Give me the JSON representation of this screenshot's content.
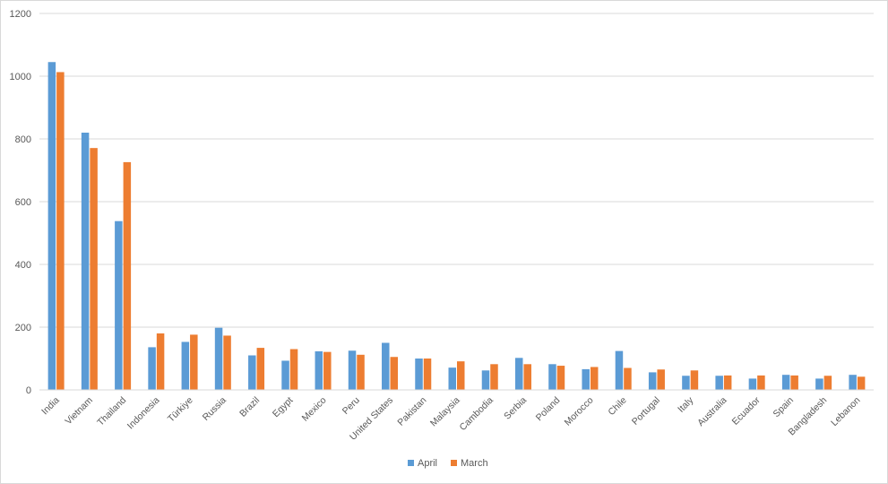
{
  "chart_data": {
    "type": "bar",
    "title": "",
    "xlabel": "",
    "ylabel": "",
    "ylim": [
      0,
      1200
    ],
    "yticks": [
      0,
      200,
      400,
      600,
      800,
      1000,
      1200
    ],
    "grid": true,
    "legend_position": "bottom",
    "categories": [
      "India",
      "Vietnam",
      "Thailand",
      "Indonesia",
      "Türkiye",
      "Russia",
      "Brazil",
      "Egypt",
      "Mexico",
      "Peru",
      "United States",
      "Pakistan",
      "Malaysia",
      "Cambodia",
      "Serbia",
      "Poland",
      "Morocco",
      "Chile",
      "Portugal",
      "Italy",
      "Australia",
      "Ecuador",
      "Spain",
      "Bangladesh",
      "Lebanon"
    ],
    "series": [
      {
        "name": "April",
        "color": "#5b9bd5",
        "values": [
          1045,
          820,
          538,
          136,
          153,
          198,
          110,
          93,
          123,
          125,
          150,
          100,
          71,
          62,
          102,
          82,
          66,
          124,
          56,
          45,
          45,
          36,
          48,
          36,
          48
        ]
      },
      {
        "name": "March",
        "color": "#ed7d31",
        "values": [
          1013,
          771,
          726,
          180,
          176,
          173,
          134,
          130,
          121,
          112,
          105,
          100,
          91,
          82,
          82,
          77,
          73,
          70,
          65,
          62,
          46,
          46,
          46,
          45,
          42
        ]
      }
    ]
  }
}
